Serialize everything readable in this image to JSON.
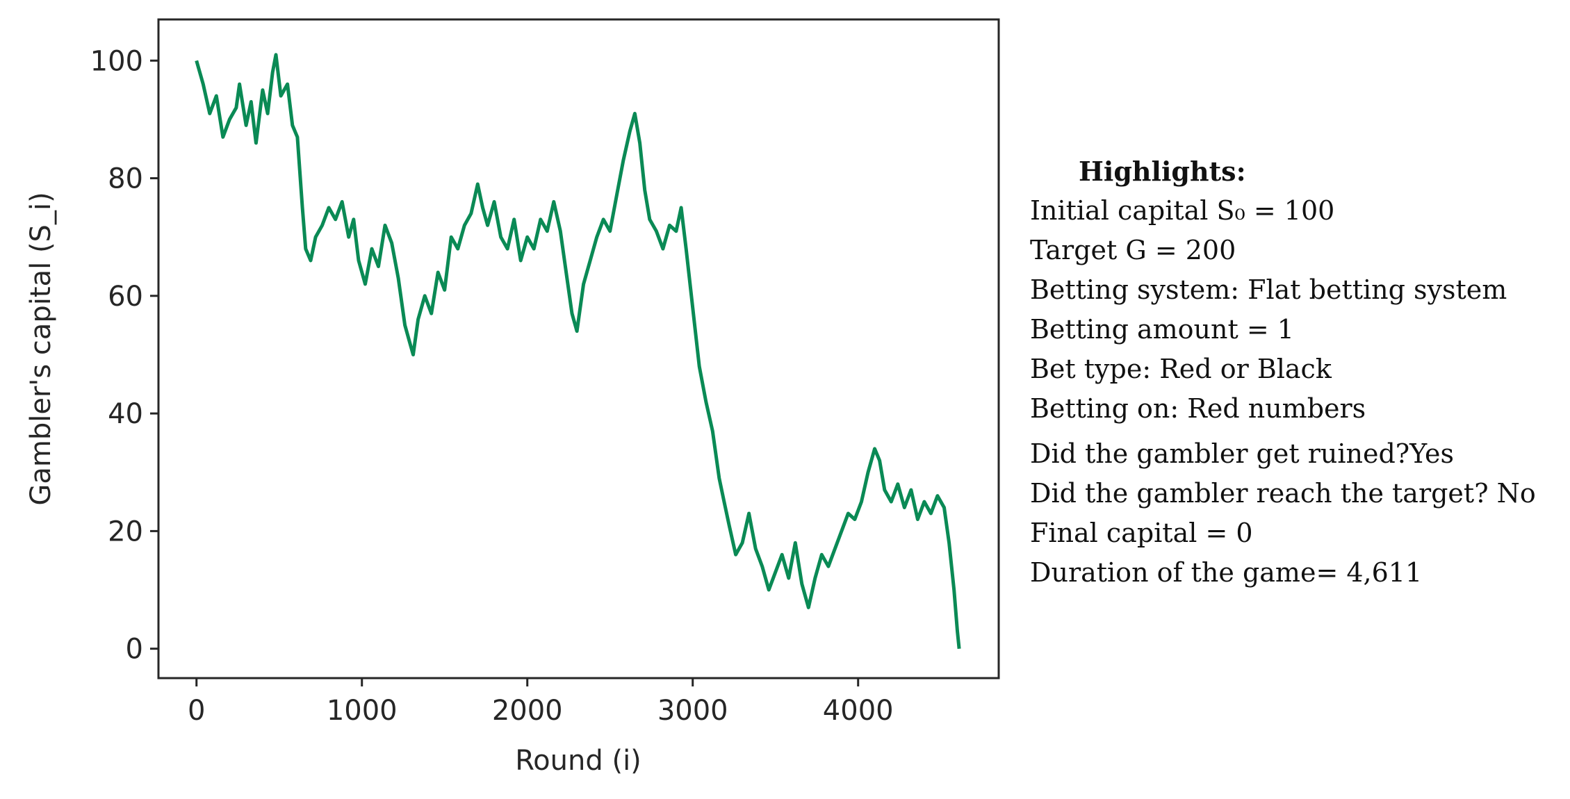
{
  "chart_data": {
    "type": "line",
    "xlabel": "Round (i)",
    "ylabel": "Gambler's capital (S_i)",
    "xlim": [
      -230,
      4850
    ],
    "ylim": [
      -5,
      107
    ],
    "x_ticks": [
      0,
      1000,
      2000,
      3000,
      4000
    ],
    "y_ticks": [
      0,
      20,
      40,
      60,
      80,
      100
    ],
    "grid": false,
    "series": [
      {
        "color": "#0a8a55",
        "points": [
          [
            0,
            100
          ],
          [
            40,
            96
          ],
          [
            80,
            91
          ],
          [
            120,
            94
          ],
          [
            160,
            87
          ],
          [
            200,
            90
          ],
          [
            240,
            92
          ],
          [
            260,
            96
          ],
          [
            300,
            89
          ],
          [
            330,
            93
          ],
          [
            360,
            86
          ],
          [
            400,
            95
          ],
          [
            430,
            91
          ],
          [
            460,
            98
          ],
          [
            480,
            101
          ],
          [
            510,
            94
          ],
          [
            550,
            96
          ],
          [
            580,
            89
          ],
          [
            610,
            87
          ],
          [
            640,
            75
          ],
          [
            660,
            68
          ],
          [
            690,
            66
          ],
          [
            720,
            70
          ],
          [
            760,
            72
          ],
          [
            800,
            75
          ],
          [
            840,
            73
          ],
          [
            880,
            76
          ],
          [
            920,
            70
          ],
          [
            950,
            73
          ],
          [
            980,
            66
          ],
          [
            1020,
            62
          ],
          [
            1060,
            68
          ],
          [
            1100,
            65
          ],
          [
            1140,
            72
          ],
          [
            1180,
            69
          ],
          [
            1220,
            63
          ],
          [
            1260,
            55
          ],
          [
            1290,
            52
          ],
          [
            1310,
            50
          ],
          [
            1340,
            56
          ],
          [
            1380,
            60
          ],
          [
            1420,
            57
          ],
          [
            1460,
            64
          ],
          [
            1500,
            61
          ],
          [
            1540,
            70
          ],
          [
            1580,
            68
          ],
          [
            1620,
            72
          ],
          [
            1660,
            74
          ],
          [
            1700,
            79
          ],
          [
            1730,
            75
          ],
          [
            1760,
            72
          ],
          [
            1800,
            76
          ],
          [
            1840,
            70
          ],
          [
            1880,
            68
          ],
          [
            1920,
            73
          ],
          [
            1960,
            66
          ],
          [
            2000,
            70
          ],
          [
            2040,
            68
          ],
          [
            2080,
            73
          ],
          [
            2120,
            71
          ],
          [
            2160,
            76
          ],
          [
            2200,
            71
          ],
          [
            2240,
            63
          ],
          [
            2270,
            57
          ],
          [
            2300,
            54
          ],
          [
            2340,
            62
          ],
          [
            2380,
            66
          ],
          [
            2420,
            70
          ],
          [
            2460,
            73
          ],
          [
            2500,
            71
          ],
          [
            2540,
            77
          ],
          [
            2580,
            83
          ],
          [
            2620,
            88
          ],
          [
            2650,
            91
          ],
          [
            2680,
            86
          ],
          [
            2710,
            78
          ],
          [
            2740,
            73
          ],
          [
            2780,
            71
          ],
          [
            2820,
            68
          ],
          [
            2860,
            72
          ],
          [
            2900,
            71
          ],
          [
            2930,
            75
          ],
          [
            2960,
            68
          ],
          [
            3000,
            58
          ],
          [
            3040,
            48
          ],
          [
            3080,
            42
          ],
          [
            3120,
            37
          ],
          [
            3160,
            29
          ],
          [
            3190,
            25
          ],
          [
            3220,
            21
          ],
          [
            3260,
            16
          ],
          [
            3300,
            18
          ],
          [
            3340,
            23
          ],
          [
            3380,
            17
          ],
          [
            3420,
            14
          ],
          [
            3460,
            10
          ],
          [
            3500,
            13
          ],
          [
            3540,
            16
          ],
          [
            3580,
            12
          ],
          [
            3620,
            18
          ],
          [
            3660,
            11
          ],
          [
            3700,
            7
          ],
          [
            3740,
            12
          ],
          [
            3780,
            16
          ],
          [
            3820,
            14
          ],
          [
            3860,
            17
          ],
          [
            3900,
            20
          ],
          [
            3940,
            23
          ],
          [
            3980,
            22
          ],
          [
            4020,
            25
          ],
          [
            4060,
            30
          ],
          [
            4100,
            34
          ],
          [
            4130,
            32
          ],
          [
            4160,
            27
          ],
          [
            4200,
            25
          ],
          [
            4240,
            28
          ],
          [
            4280,
            24
          ],
          [
            4320,
            27
          ],
          [
            4360,
            22
          ],
          [
            4400,
            25
          ],
          [
            4440,
            23
          ],
          [
            4480,
            26
          ],
          [
            4520,
            24
          ],
          [
            4550,
            18
          ],
          [
            4580,
            10
          ],
          [
            4600,
            3
          ],
          [
            4611,
            0
          ]
        ]
      }
    ]
  },
  "highlights": {
    "title": "Highlights",
    "title_suffix": ":",
    "lines": [
      "Initial capital S₀ = 100",
      "Target G = 200",
      "Betting system: Flat betting system",
      "Betting amount = 1",
      "Bet type: Red or Black",
      "Betting on: Red numbers",
      "Did the gambler get ruined?Yes",
      "Did the gambler reach the target? No",
      "Final capital = 0",
      "Duration of the game= 4,611"
    ]
  }
}
